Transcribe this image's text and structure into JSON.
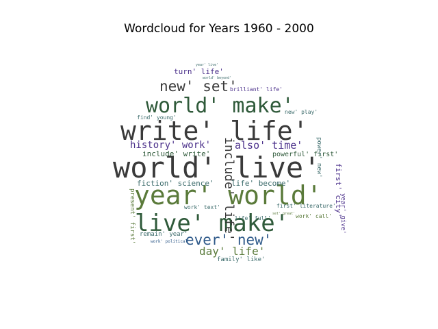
{
  "title": "Wordcloud for Years 1960 - 2000",
  "colors": {
    "dark": "#3a3a3a",
    "green": "#5a7a3a",
    "darkgreen": "#2f5a3a",
    "blue": "#2f5a8a",
    "purple": "#4a2f8a",
    "teal": "#3a6a6a",
    "olive": "#6a7a3a"
  },
  "words": {
    "world_live": "world' live'",
    "year_world": "year' world'",
    "write_life": "write' life'",
    "world_make": "world' make'",
    "live_make": "live' make'",
    "new_set": "new' set'",
    "ever_new": "ever' new'",
    "include_life": "include' life'",
    "day_life": "day' life'",
    "history_work": "history' work'",
    "also_time": "also' time'",
    "turn_life": "turn' life'",
    "brilliant_life": "brilliant' life'",
    "fiction_science": "fiction' science'",
    "life_become": "life' become'",
    "include_write": "include' write'",
    "first_city": "first' city'",
    "powerful_first": "powerful' first'",
    "remain_year": "remain' year'",
    "family_like": "family' like'",
    "find_young": "find' young'",
    "new_play": "new' play'",
    "work_call": "work' call'",
    "first_literature": "first' literature'",
    "life_full": "life' full'",
    "work_text": "work' text'",
    "present_first": "present' first'",
    "year_give": "year' give'",
    "power_new": "power' new'",
    "work_political": "work' political'",
    "set_great": "set' great'",
    "year_live": "year' live'",
    "world_beyond": "world' beyond'"
  }
}
